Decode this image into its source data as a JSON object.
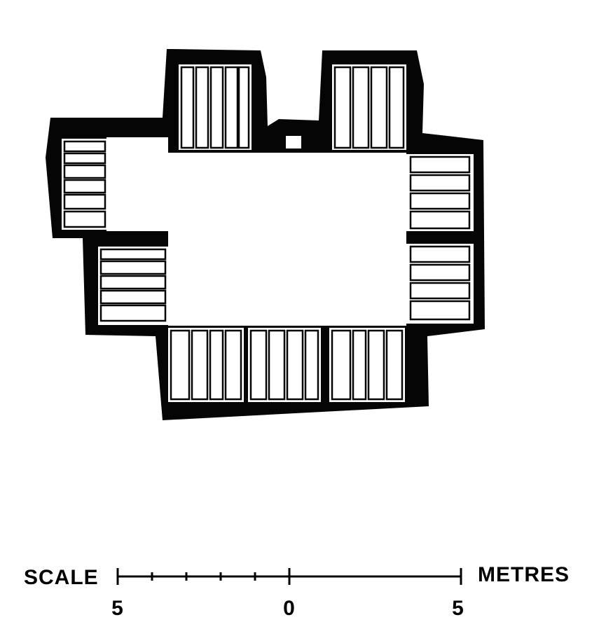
{
  "scale_bar": {
    "left_label": "SCALE",
    "right_label": "METRES",
    "tick_labels": [
      "5",
      "0",
      "5"
    ]
  },
  "colors": {
    "ink": "#050505",
    "paper": "#ffffff"
  }
}
